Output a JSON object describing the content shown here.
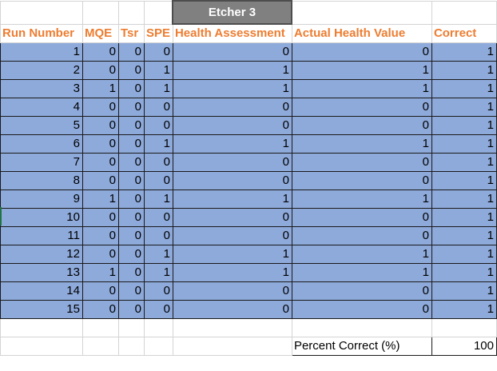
{
  "sheet": {
    "title": "Etcher 3",
    "headers": {
      "run_number": "Run Number",
      "mqe": "MQE",
      "tsr": "Tsr",
      "spe": "SPE",
      "health_assessment": "Health Assessment",
      "actual_health_value": "Actual Health Value",
      "correct": "Correct"
    },
    "rows": [
      {
        "run": "1",
        "mqe": "0",
        "tsr": "0",
        "spe": "0",
        "health": "0",
        "actual": "0",
        "correct": "1"
      },
      {
        "run": "2",
        "mqe": "0",
        "tsr": "0",
        "spe": "1",
        "health": "1",
        "actual": "1",
        "correct": "1"
      },
      {
        "run": "3",
        "mqe": "1",
        "tsr": "0",
        "spe": "1",
        "health": "1",
        "actual": "1",
        "correct": "1"
      },
      {
        "run": "4",
        "mqe": "0",
        "tsr": "0",
        "spe": "0",
        "health": "0",
        "actual": "0",
        "correct": "1"
      },
      {
        "run": "5",
        "mqe": "0",
        "tsr": "0",
        "spe": "0",
        "health": "0",
        "actual": "0",
        "correct": "1"
      },
      {
        "run": "6",
        "mqe": "0",
        "tsr": "0",
        "spe": "1",
        "health": "1",
        "actual": "1",
        "correct": "1"
      },
      {
        "run": "7",
        "mqe": "0",
        "tsr": "0",
        "spe": "0",
        "health": "0",
        "actual": "0",
        "correct": "1"
      },
      {
        "run": "8",
        "mqe": "0",
        "tsr": "0",
        "spe": "0",
        "health": "0",
        "actual": "0",
        "correct": "1"
      },
      {
        "run": "9",
        "mqe": "1",
        "tsr": "0",
        "spe": "1",
        "health": "1",
        "actual": "1",
        "correct": "1"
      },
      {
        "run": "10",
        "mqe": "0",
        "tsr": "0",
        "spe": "0",
        "health": "0",
        "actual": "0",
        "correct": "1"
      },
      {
        "run": "11",
        "mqe": "0",
        "tsr": "0",
        "spe": "0",
        "health": "0",
        "actual": "0",
        "correct": "1"
      },
      {
        "run": "12",
        "mqe": "0",
        "tsr": "0",
        "spe": "1",
        "health": "1",
        "actual": "1",
        "correct": "1"
      },
      {
        "run": "13",
        "mqe": "1",
        "tsr": "0",
        "spe": "1",
        "health": "1",
        "actual": "1",
        "correct": "1"
      },
      {
        "run": "14",
        "mqe": "0",
        "tsr": "0",
        "spe": "0",
        "health": "0",
        "actual": "0",
        "correct": "1"
      },
      {
        "run": "15",
        "mqe": "0",
        "tsr": "0",
        "spe": "0",
        "health": "0",
        "actual": "0",
        "correct": "1"
      }
    ],
    "summary": {
      "label": "Percent Correct (%)",
      "value": "100"
    }
  },
  "colors": {
    "header_text": "#ed7d31",
    "data_fill": "#8eaadb",
    "title_fill": "#808080"
  }
}
